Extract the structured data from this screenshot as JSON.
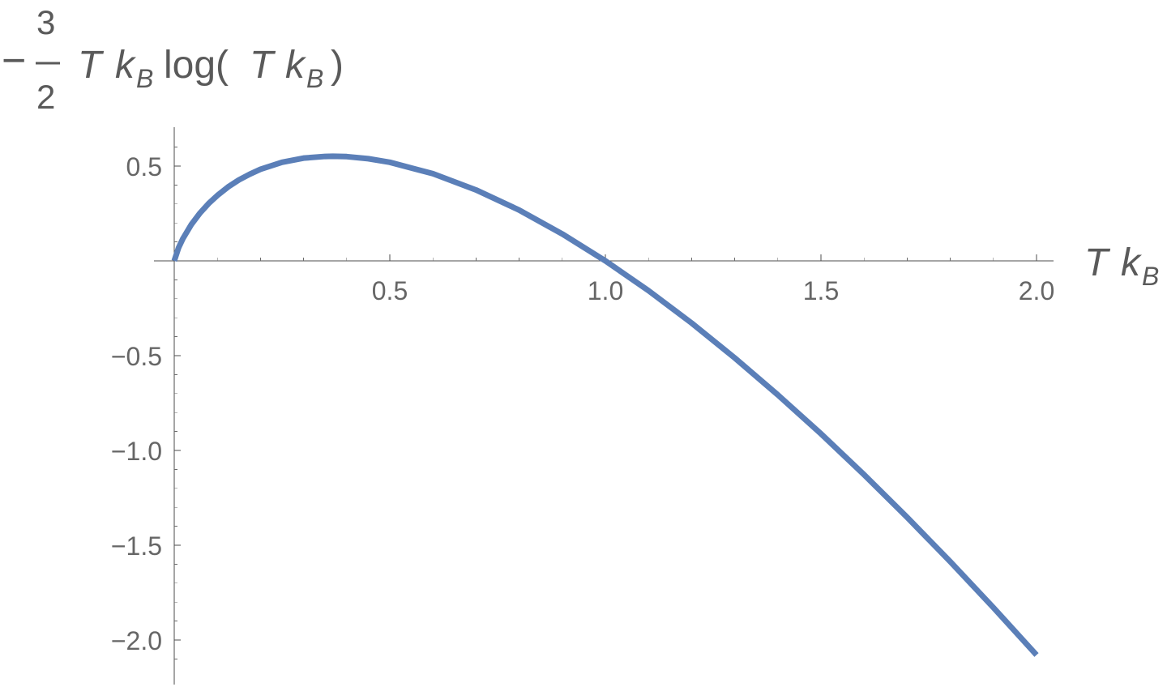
{
  "chart_data": {
    "type": "line",
    "xlabel": {
      "var_t": "T",
      "var_k": "k",
      "subscript_b": "B"
    },
    "ylabel": {
      "sign": "−",
      "numerator": "3",
      "denominator": "2",
      "var_t": "T",
      "var_k": "k",
      "subscript_b": "B",
      "func": "log(",
      "inner_t": "T",
      "inner_k": "k",
      "inner_subscript_b": "B",
      "close": ")"
    },
    "xlim": [
      0,
      2.0
    ],
    "ylim": [
      -2.1,
      0.6
    ],
    "xticks": [
      0.5,
      1.0,
      1.5,
      2.0
    ],
    "xtick_labels": [
      "0.5",
      "1.0",
      "1.5",
      "2.0"
    ],
    "yticks": [
      0.5,
      -0.5,
      -1.0,
      -1.5,
      -2.0
    ],
    "ytick_labels": [
      "0.5",
      "−0.5",
      "−1.0",
      "−1.5",
      "−2.0"
    ],
    "series": [
      {
        "color": "#5b7fb8",
        "x": [
          0.0,
          0.01,
          0.02,
          0.04,
          0.06,
          0.08,
          0.1,
          0.125,
          0.15,
          0.175,
          0.2,
          0.25,
          0.3,
          0.35,
          0.3679,
          0.4,
          0.45,
          0.5,
          0.6,
          0.7,
          0.8,
          0.9,
          1.0,
          1.1,
          1.2,
          1.3,
          1.4,
          1.5,
          1.6,
          1.7,
          1.8,
          1.9,
          2.0
        ],
        "y": [
          0.0,
          0.069,
          0.117,
          0.193,
          0.253,
          0.303,
          0.345,
          0.39,
          0.427,
          0.457,
          0.483,
          0.52,
          0.542,
          0.551,
          0.552,
          0.55,
          0.539,
          0.52,
          0.46,
          0.374,
          0.268,
          0.142,
          0.0,
          -0.157,
          -0.328,
          -0.512,
          -0.707,
          -0.912,
          -1.128,
          -1.353,
          -1.587,
          -1.829,
          -2.079
        ]
      }
    ],
    "grid": false
  }
}
